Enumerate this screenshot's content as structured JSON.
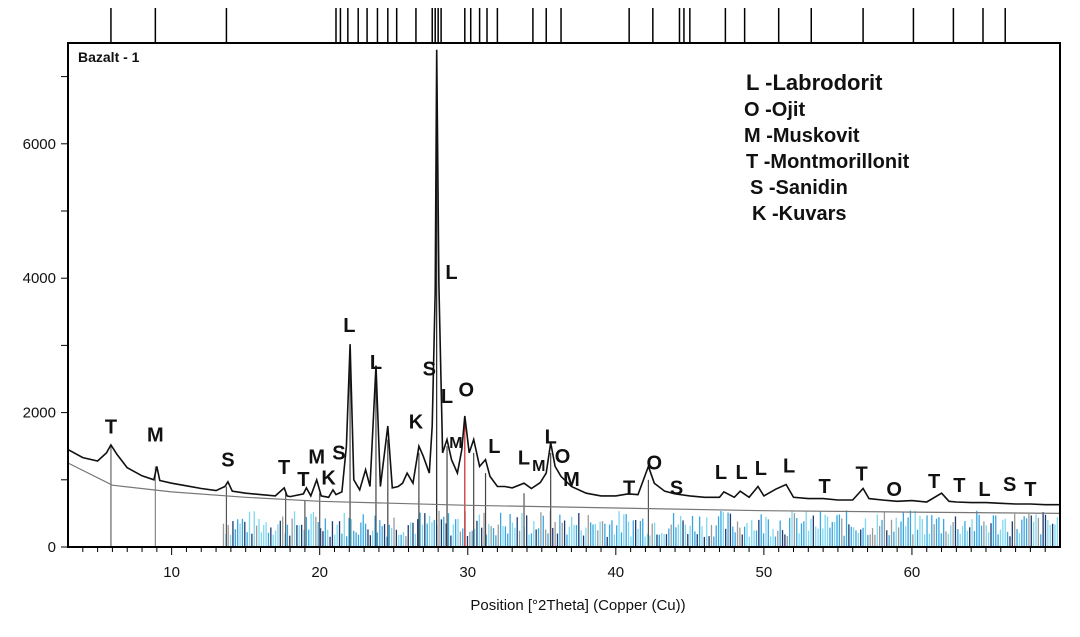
{
  "chart_data": {
    "type": "line",
    "title": "Bazalt - 1",
    "xlabel": "Position [°2Theta] (Copper (Cu))",
    "ylabel": "",
    "xlim": [
      3,
      70
    ],
    "ylim": [
      0,
      7500
    ],
    "xticks": [
      10,
      20,
      30,
      40,
      50,
      60
    ],
    "yticks": [
      0,
      2000,
      4000,
      6000
    ],
    "grid": false,
    "legend_position": "top-right",
    "legend": [
      {
        "key": "L",
        "name": "Labrodorit"
      },
      {
        "key": "O",
        "name": "Ojit"
      },
      {
        "key": "M",
        "name": "Muskovit"
      },
      {
        "key": "T",
        "name": "Montmorillonit"
      },
      {
        "key": "S",
        "name": "Sanidin"
      },
      {
        "key": "K",
        "name": "Kuvars"
      }
    ],
    "baseline": [
      [
        3,
        1250
      ],
      [
        6,
        920
      ],
      [
        10,
        820
      ],
      [
        15,
        740
      ],
      [
        20,
        680
      ],
      [
        30,
        620
      ],
      [
        40,
        580
      ],
      [
        50,
        540
      ],
      [
        60,
        520
      ],
      [
        70,
        500
      ]
    ],
    "pattern": [
      [
        3,
        1450
      ],
      [
        4,
        1330
      ],
      [
        5,
        1280
      ],
      [
        5.6,
        1400
      ],
      [
        5.9,
        1520
      ],
      [
        6.3,
        1380
      ],
      [
        7,
        1180
      ],
      [
        8,
        1060
      ],
      [
        8.8,
        1000
      ],
      [
        9,
        1200
      ],
      [
        9.2,
        990
      ],
      [
        10,
        950
      ],
      [
        11,
        910
      ],
      [
        12,
        870
      ],
      [
        13,
        840
      ],
      [
        13.6,
        900
      ],
      [
        13.8,
        970
      ],
      [
        14.1,
        830
      ],
      [
        15,
        800
      ],
      [
        16,
        780
      ],
      [
        17,
        760
      ],
      [
        17.6,
        880
      ],
      [
        17.8,
        760
      ],
      [
        18,
        750
      ],
      [
        18.9,
        790
      ],
      [
        19.1,
        880
      ],
      [
        19.4,
        760
      ],
      [
        19.8,
        1000
      ],
      [
        20.1,
        760
      ],
      [
        20.6,
        740
      ],
      [
        20.9,
        850
      ],
      [
        21.1,
        780
      ],
      [
        21.5,
        820
      ],
      [
        21.8,
        1500
      ],
      [
        22.05,
        3020
      ],
      [
        22.3,
        1000
      ],
      [
        22.7,
        850
      ],
      [
        23.1,
        1150
      ],
      [
        23.4,
        900
      ],
      [
        23.8,
        2700
      ],
      [
        24.1,
        900
      ],
      [
        24.6,
        1800
      ],
      [
        24.9,
        880
      ],
      [
        25.3,
        900
      ],
      [
        25.6,
        950
      ],
      [
        25.9,
        1100
      ],
      [
        26.3,
        950
      ],
      [
        26.7,
        1500
      ],
      [
        27.0,
        1350
      ],
      [
        27.4,
        1100
      ],
      [
        27.6,
        1800
      ],
      [
        27.8,
        3800
      ],
      [
        27.9,
        7400
      ],
      [
        28.05,
        3900
      ],
      [
        28.3,
        1400
      ],
      [
        28.6,
        1600
      ],
      [
        28.9,
        1300
      ],
      [
        29.3,
        1100
      ],
      [
        29.6,
        1450
      ],
      [
        29.8,
        1950
      ],
      [
        30.1,
        1400
      ],
      [
        30.4,
        1600
      ],
      [
        30.8,
        1200
      ],
      [
        31.2,
        1300
      ],
      [
        31.5,
        1050
      ],
      [
        32,
        900
      ],
      [
        32.5,
        900
      ],
      [
        33,
        880
      ],
      [
        33.8,
        950
      ],
      [
        34.3,
        870
      ],
      [
        34.9,
        960
      ],
      [
        35.3,
        1100
      ],
      [
        35.6,
        1550
      ],
      [
        35.9,
        1200
      ],
      [
        36.3,
        1050
      ],
      [
        37,
        900
      ],
      [
        38,
        800
      ],
      [
        39,
        760
      ],
      [
        40,
        760
      ],
      [
        40.8,
        790
      ],
      [
        41.5,
        780
      ],
      [
        42.2,
        1200
      ],
      [
        42.6,
        950
      ],
      [
        43.3,
        830
      ],
      [
        44,
        790
      ],
      [
        45,
        760
      ],
      [
        46,
        740
      ],
      [
        47,
        740
      ],
      [
        47.3,
        820
      ],
      [
        48,
        740
      ],
      [
        48.4,
        830
      ],
      [
        49,
        740
      ],
      [
        49.6,
        900
      ],
      [
        50,
        760
      ],
      [
        50.8,
        860
      ],
      [
        51.5,
        930
      ],
      [
        52,
        740
      ],
      [
        53,
        720
      ],
      [
        54,
        720
      ],
      [
        55,
        700
      ],
      [
        56,
        700
      ],
      [
        56.7,
        870
      ],
      [
        57.1,
        720
      ],
      [
        58,
        700
      ],
      [
        59,
        680
      ],
      [
        60,
        690
      ],
      [
        61,
        670
      ],
      [
        62,
        800
      ],
      [
        62.5,
        680
      ],
      [
        63,
        670
      ],
      [
        64,
        660
      ],
      [
        65,
        660
      ],
      [
        66,
        650
      ],
      [
        67,
        640
      ],
      [
        68,
        640
      ],
      [
        69,
        630
      ],
      [
        70,
        630
      ]
    ],
    "top_ticks": [
      5.9,
      8.9,
      13.7,
      21.1,
      21.4,
      21.9,
      22.6,
      23.2,
      23.9,
      24.6,
      25.2,
      26.5,
      27.6,
      27.8,
      28.0,
      28.2,
      29.8,
      30.2,
      30.8,
      31.3,
      32.0,
      34.4,
      35.3,
      36.3,
      40.9,
      42.5,
      44.3,
      44.6,
      45.0,
      47.4,
      48.7,
      51.0,
      53.2,
      56.7,
      60.1,
      62.8,
      64.8,
      66.3
    ],
    "bottom_sticks": [
      {
        "x": 5.9,
        "h": 1500,
        "c": "#666666"
      },
      {
        "x": 8.9,
        "h": 1200,
        "c": "#888888"
      },
      {
        "x": 13.7,
        "h": 900,
        "c": "#555555"
      },
      {
        "x": 17.7,
        "h": 800,
        "c": "#555555"
      },
      {
        "x": 19.0,
        "h": 700,
        "c": "#555555"
      },
      {
        "x": 20.0,
        "h": 800,
        "c": "#555555"
      },
      {
        "x": 22.05,
        "h": 2900,
        "c": "#444444"
      },
      {
        "x": 23.8,
        "h": 2500,
        "c": "#444444"
      },
      {
        "x": 24.6,
        "h": 1600,
        "c": "#444444"
      },
      {
        "x": 26.7,
        "h": 1400,
        "c": "#444444"
      },
      {
        "x": 27.9,
        "h": 7300,
        "c": "#222222"
      },
      {
        "x": 28.6,
        "h": 1500,
        "c": "#444444"
      },
      {
        "x": 29.8,
        "h": 1900,
        "c": "#cc2222"
      },
      {
        "x": 30.4,
        "h": 1400,
        "c": "#444444"
      },
      {
        "x": 31.2,
        "h": 1100,
        "c": "#444444"
      },
      {
        "x": 33.8,
        "h": 800,
        "c": "#555555"
      },
      {
        "x": 35.6,
        "h": 1400,
        "c": "#444444"
      },
      {
        "x": 42.2,
        "h": 1000,
        "c": "#555555"
      }
    ]
  },
  "peak_labels": [
    {
      "text": "T",
      "x": 5.9,
      "y": 1690
    },
    {
      "text": "M",
      "x": 8.9,
      "y": 1570
    },
    {
      "text": "S",
      "x": 13.8,
      "y": 1200
    },
    {
      "text": "T",
      "x": 17.6,
      "y": 1090
    },
    {
      "text": "T",
      "x": 18.9,
      "y": 910
    },
    {
      "text": "M",
      "x": 19.8,
      "y": 1240
    },
    {
      "text": "K",
      "x": 20.6,
      "y": 930
    },
    {
      "text": "S",
      "x": 21.3,
      "y": 1300
    },
    {
      "text": "L",
      "x": 22.0,
      "y": 3200
    },
    {
      "text": "L",
      "x": 23.8,
      "y": 2650
    },
    {
      "text": "K",
      "x": 26.5,
      "y": 1760
    },
    {
      "text": "S",
      "x": 27.4,
      "y": 2550
    },
    {
      "text": "L",
      "x": 28.9,
      "y": 3990
    },
    {
      "text": "L",
      "x": 28.6,
      "y": 2140
    },
    {
      "text": "O",
      "x": 29.9,
      "y": 2240
    },
    {
      "text": "M",
      "x": 29.2,
      "y": 1470,
      "small": true
    },
    {
      "text": "L",
      "x": 31.8,
      "y": 1400
    },
    {
      "text": "L",
      "x": 33.8,
      "y": 1230
    },
    {
      "text": "M",
      "x": 34.8,
      "y": 1130,
      "small": true
    },
    {
      "text": "L",
      "x": 35.6,
      "y": 1540
    },
    {
      "text": "O",
      "x": 36.4,
      "y": 1250
    },
    {
      "text": "M",
      "x": 37.0,
      "y": 910
    },
    {
      "text": "T",
      "x": 40.9,
      "y": 780
    },
    {
      "text": "O",
      "x": 42.6,
      "y": 1150
    },
    {
      "text": "S",
      "x": 44.1,
      "y": 780
    },
    {
      "text": "L",
      "x": 47.1,
      "y": 1010
    },
    {
      "text": "L",
      "x": 48.5,
      "y": 1010
    },
    {
      "text": "L",
      "x": 49.8,
      "y": 1070
    },
    {
      "text": "L",
      "x": 51.7,
      "y": 1110
    },
    {
      "text": "T",
      "x": 54.1,
      "y": 800
    },
    {
      "text": "T",
      "x": 56.6,
      "y": 990
    },
    {
      "text": "O",
      "x": 58.8,
      "y": 760
    },
    {
      "text": "T",
      "x": 61.5,
      "y": 880
    },
    {
      "text": "T",
      "x": 63.2,
      "y": 820
    },
    {
      "text": "L",
      "x": 64.9,
      "y": 760
    },
    {
      "text": "S",
      "x": 66.6,
      "y": 830
    },
    {
      "text": "T",
      "x": 68.0,
      "y": 760
    }
  ],
  "colors": {
    "pattern": "#111111",
    "baseline": "#777777",
    "axis": "#000000",
    "stick_blue": "#3aa6e0",
    "stick_cyan": "#7fd8f0",
    "stick_dark": "#1e3a6e",
    "stick_gray": "#9a9a9a"
  }
}
